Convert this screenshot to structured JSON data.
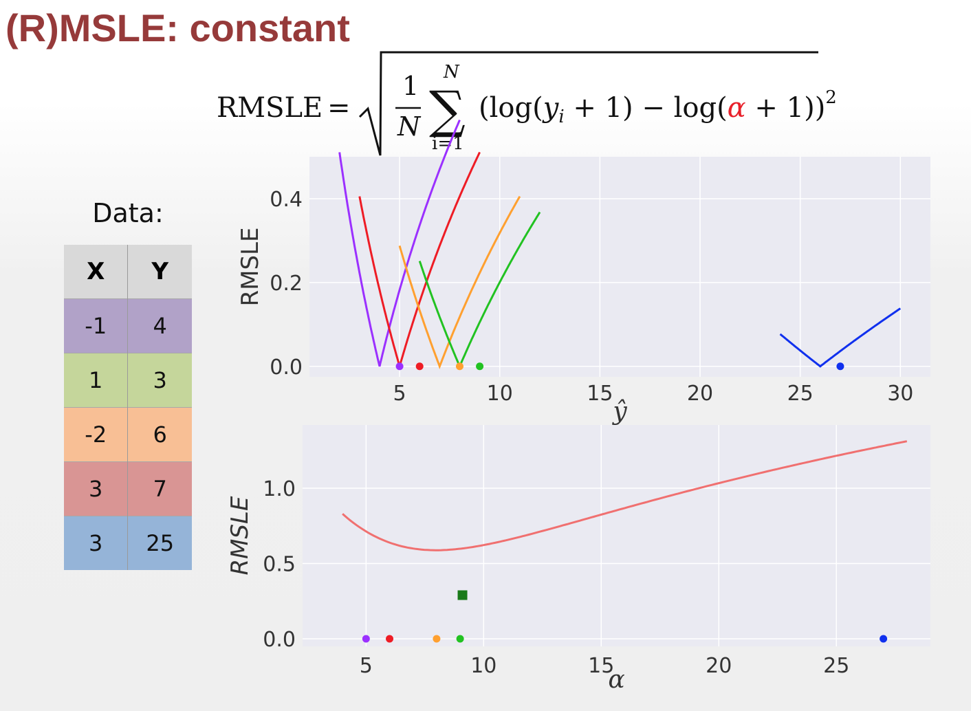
{
  "slide": {
    "title": "(R)MSLE: constant"
  },
  "formula": {
    "lhs": "RMSLE",
    "one": "1",
    "n": "N",
    "sum_top": "N",
    "sum_bottom": "i=1",
    "body_a": "(log(",
    "y_i": "y",
    "sub_i": "i",
    "body_b": " + 1) − log(",
    "alpha": "α",
    "body_c": " + 1))",
    "power": "2",
    "alpha_color": "#e8202a"
  },
  "table": {
    "label": "Data:",
    "headers": [
      "X",
      "Y"
    ],
    "rows": [
      {
        "x": "-1",
        "y": "4",
        "color": "#b1a2c8"
      },
      {
        "x": "1",
        "y": "3",
        "color": "#c5d69b"
      },
      {
        "x": "-2",
        "y": "6",
        "color": "#f8bf95"
      },
      {
        "x": "3",
        "y": "7",
        "color": "#d99594"
      },
      {
        "x": "3",
        "y": "25",
        "color": "#95b4d8"
      }
    ]
  },
  "chart_data": [
    {
      "type": "line",
      "xlabel": "ŷ",
      "ylabel": "RMSLE",
      "xlim": [
        0.5,
        31.5
      ],
      "ylim": [
        -0.025,
        0.5
      ],
      "xticks": [
        5,
        10,
        15,
        20,
        25,
        30
      ],
      "yticks": [
        0.0,
        0.2,
        0.4
      ],
      "ytick_labels": [
        "0.0",
        "0.2",
        "0.4"
      ],
      "grid": true,
      "background": "#eaeaf2",
      "series": [
        {
          "target": 4,
          "x_range": [
            2,
            8
          ],
          "color": "#9b30ff",
          "min_point": [
            5,
            0.0
          ]
        },
        {
          "target": 5,
          "x_range": [
            3,
            9
          ],
          "color": "#ee1c25",
          "min_point": [
            6,
            0.0
          ]
        },
        {
          "target": 7,
          "x_range": [
            5,
            11
          ],
          "color": "#ffa030",
          "min_point": [
            8,
            0.0
          ]
        },
        {
          "target": 8,
          "x_range": [
            6,
            12
          ],
          "color": "#22c222",
          "min_point": [
            9,
            0.0
          ]
        },
        {
          "target": 26,
          "x_range": [
            24,
            30
          ],
          "color": "#1030ee",
          "min_point": [
            27,
            0.0
          ]
        }
      ]
    },
    {
      "type": "line",
      "xlabel": "α",
      "ylabel": "RMSLE",
      "xlim": [
        2.3,
        29.0
      ],
      "ylim": [
        -0.05,
        1.42
      ],
      "xticks": [
        5,
        10,
        15,
        20,
        25
      ],
      "yticks": [
        0.0,
        0.5,
        1.0
      ],
      "ytick_labels": [
        "0.0",
        "0.5",
        "1.0"
      ],
      "grid": true,
      "background": "#eaeaf2",
      "targets": [
        4,
        5,
        7,
        8,
        26
      ],
      "curve": {
        "x_range": [
          4,
          28
        ],
        "color": "#f07070"
      },
      "minimum": {
        "alpha": 9.1,
        "rmsle": 0.29,
        "color": "#1a7a1a"
      },
      "points": [
        {
          "x": 5,
          "y": 0,
          "color": "#9b30ff"
        },
        {
          "x": 6,
          "y": 0,
          "color": "#ee1c25"
        },
        {
          "x": 8,
          "y": 0,
          "color": "#ffa030"
        },
        {
          "x": 9,
          "y": 0,
          "color": "#22c222"
        },
        {
          "x": 27,
          "y": 0,
          "color": "#1030ee"
        }
      ]
    }
  ]
}
